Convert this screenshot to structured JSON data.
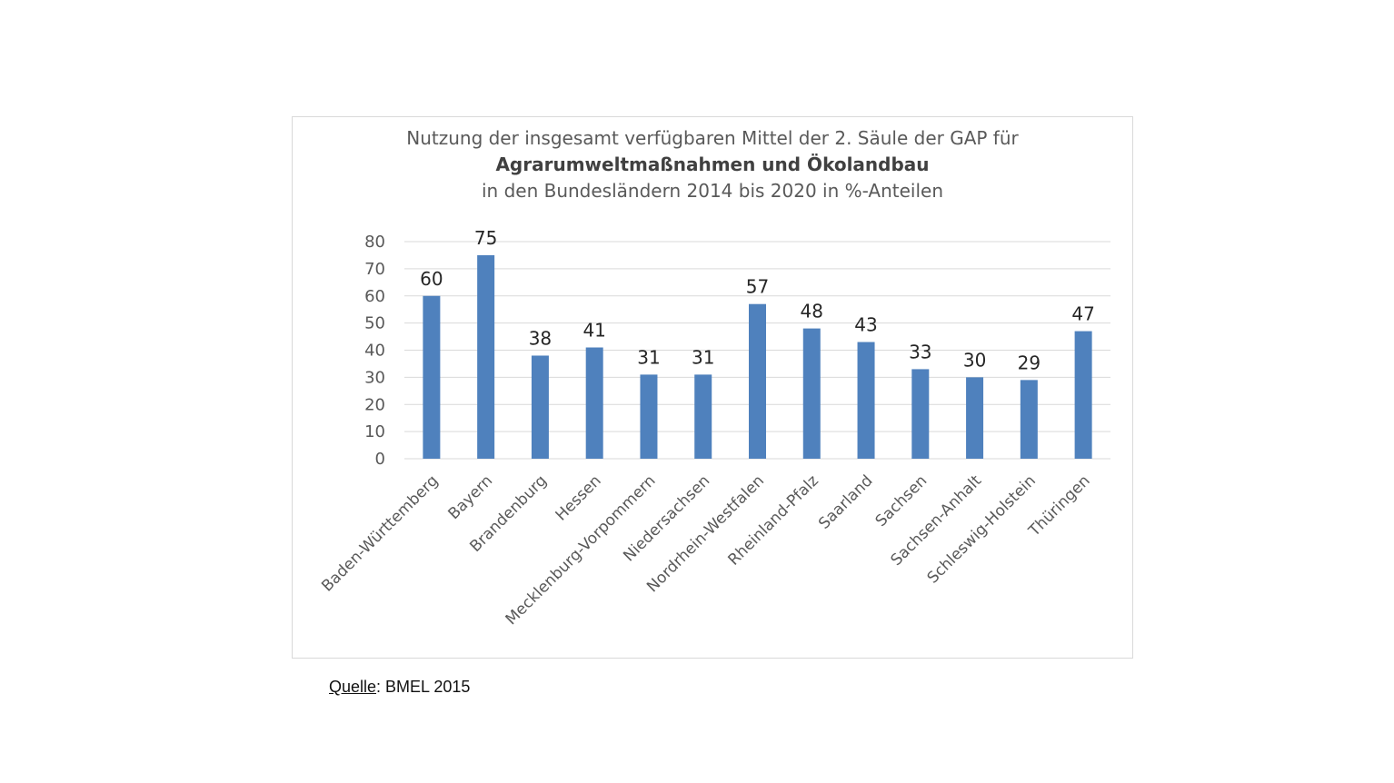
{
  "chart_data": {
    "type": "bar",
    "title_line1": "Nutzung der insgesamt verfügbaren Mittel der 2. Säule der GAP für",
    "title_line2": "Agrarumweltmaßnahmen und Ökolandbau",
    "title_line3": "in den Bundesländern 2014 bis 2020 in %-Anteilen",
    "categories": [
      "Baden-Württemberg",
      "Bayern",
      "Brandenburg",
      "Hessen",
      "Mecklenburg-Vorpommern",
      "Niedersachsen",
      "Nordrhein-Westfalen",
      "Rheinland-Pfalz",
      "Saarland",
      "Sachsen",
      "Sachsen-Anhalt",
      "Schleswig-Holstein",
      "Thüringen"
    ],
    "values": [
      60,
      75,
      38,
      41,
      31,
      31,
      57,
      48,
      43,
      33,
      30,
      29,
      47
    ],
    "ylim": [
      0,
      80
    ],
    "yticks": [
      0,
      10,
      20,
      30,
      40,
      50,
      60,
      70,
      80
    ],
    "grid": true,
    "bar_color": "#4f81bd",
    "grid_color": "#d9d9d9"
  },
  "source": {
    "label": "Quelle",
    "text": ": BMEL 2015"
  }
}
